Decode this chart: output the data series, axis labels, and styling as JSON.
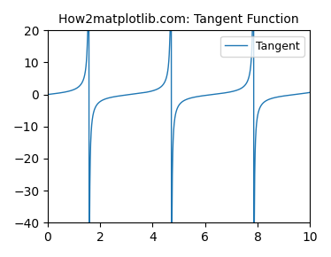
{
  "title": "How2matplotlib.com: Tangent Function",
  "legend_label": "Tangent",
  "line_color": "#1f77b4",
  "xlim": [
    0,
    10
  ],
  "ylim": [
    -40,
    20
  ],
  "x_start": 0,
  "x_end": 10,
  "n_points": 2000,
  "clip_min": -40,
  "clip_max": 20,
  "figsize": [
    3.74,
    2.9
  ],
  "dpi": 100
}
